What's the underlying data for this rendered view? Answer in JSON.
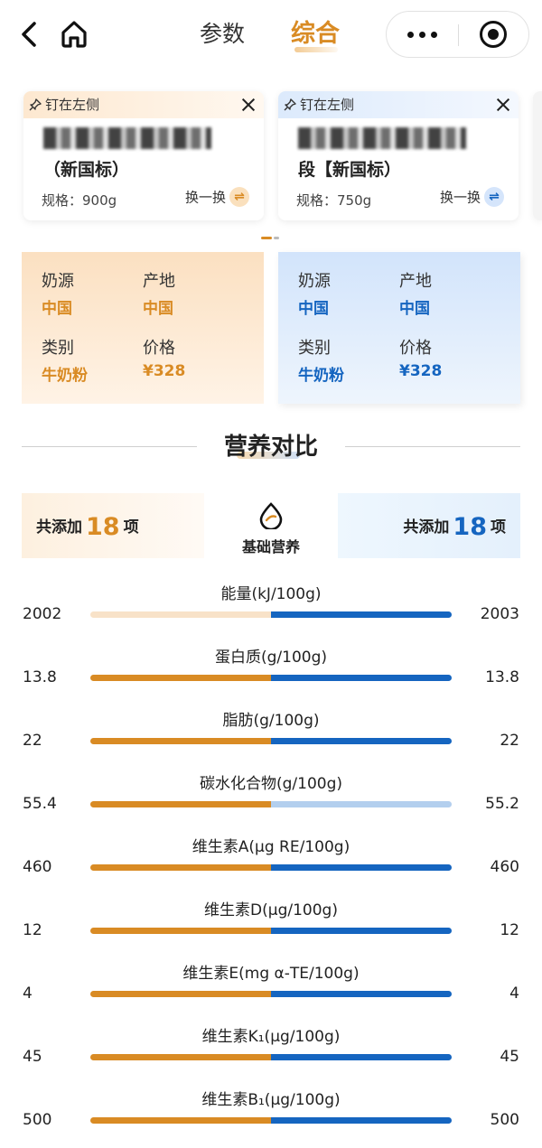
{
  "header": {
    "tabs": [
      {
        "label": "参数",
        "active": false
      },
      {
        "label": "综合",
        "active": true
      }
    ],
    "icons": [
      "back-icon",
      "home-icon",
      "more-icon",
      "target-icon"
    ]
  },
  "products": [
    {
      "pin_label": "钉在左侧",
      "name_line2": "（新国标）",
      "spec": "规格：900g",
      "swap_label": "换一换",
      "accent": "#d98b24"
    },
    {
      "pin_label": "钉在左侧",
      "name_line2": "段【新国标）",
      "spec": "规格：750g",
      "swap_label": "换一换",
      "accent": "#1565c0"
    }
  ],
  "info": {
    "labels": {
      "milk_source": "奶源",
      "origin": "产地",
      "category": "类别",
      "price": "价格"
    },
    "left": {
      "milk_source": "中国",
      "origin": "中国",
      "category": "牛奶粉",
      "price": "¥328"
    },
    "right": {
      "milk_source": "中国",
      "origin": "中国",
      "category": "牛奶粉",
      "price": "¥328"
    }
  },
  "section": {
    "title": "营养对比",
    "basic_label": "基础营养",
    "count_prefix": "共添加",
    "count_suffix": "项",
    "left_count": "18",
    "right_count": "18"
  },
  "nutrients": [
    {
      "label": "能量(kJ/100g)",
      "left": "2002",
      "right": "2003",
      "left_weak": true,
      "right_weak": false
    },
    {
      "label": "蛋白质(g/100g)",
      "left": "13.8",
      "right": "13.8",
      "left_weak": false,
      "right_weak": false
    },
    {
      "label": "脂肪(g/100g)",
      "left": "22",
      "right": "22",
      "left_weak": false,
      "right_weak": false
    },
    {
      "label": "碳水化合物(g/100g)",
      "left": "55.4",
      "right": "55.2",
      "left_weak": false,
      "right_weak": true
    },
    {
      "label": "维生素A(μg RE/100g)",
      "left": "460",
      "right": "460",
      "left_weak": false,
      "right_weak": false
    },
    {
      "label": "维生素D(μg/100g)",
      "left": "12",
      "right": "12",
      "left_weak": false,
      "right_weak": false
    },
    {
      "label": "维生素E(mg α-TE/100g)",
      "left": "4",
      "right": "4",
      "left_weak": false,
      "right_weak": false
    },
    {
      "label": "维生素K₁(μg/100g)",
      "left": "45",
      "right": "45",
      "left_weak": false,
      "right_weak": false
    },
    {
      "label": "维生素B₁(μg/100g)",
      "left": "500",
      "right": "500",
      "left_weak": false,
      "right_weak": false
    }
  ]
}
